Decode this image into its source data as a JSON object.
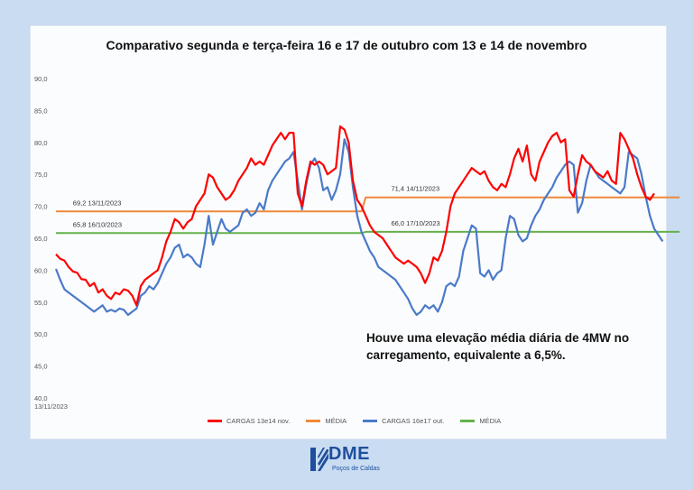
{
  "colors": {
    "red": "#ff0000",
    "blue": "#4a7ac9",
    "orange": "#f0883a",
    "green": "#64b14a"
  },
  "chart_data": {
    "type": "line",
    "title": "Comparativo segunda e terça-feira 16 e 17 de outubro com 13 e 14 de novembro",
    "ylim": [
      40,
      90
    ],
    "yticks": [
      "90,0",
      "85,0",
      "80,0",
      "75,0",
      "70,0",
      "65,0",
      "60,0",
      "55,0",
      "50,0",
      "45,0",
      "40,0"
    ],
    "xtick_first": "13/11/2023",
    "grid": false,
    "legend_position": "bottom",
    "series": [
      {
        "name": "CARGAS 13e14 nov.",
        "color": "#ff0000",
        "values": [
          62.5,
          61.8,
          61.5,
          60.5,
          59.8,
          59.6,
          58.6,
          58.5,
          57.5,
          58.0,
          56.5,
          57.0,
          56.0,
          55.5,
          56.5,
          56.2,
          57.0,
          56.8,
          56.0,
          54.5,
          57.5,
          58.5,
          59.0,
          59.5,
          60.0,
          62.0,
          64.5,
          66.0,
          68.0,
          67.5,
          66.5,
          67.5,
          68.0,
          70.0,
          71.0,
          72.0,
          75.0,
          74.5,
          73.0,
          72.0,
          71.0,
          71.5,
          72.5,
          74.0,
          75.0,
          76.0,
          77.5,
          76.5,
          77.0,
          76.5,
          78.0,
          79.5,
          80.5,
          81.5,
          80.5,
          81.5,
          81.5,
          72.0,
          70.0,
          74.0,
          77.0,
          76.5,
          77.0,
          76.5,
          75.0,
          75.5,
          76.0,
          82.5,
          82.0,
          80.0,
          74.0,
          71.0,
          70.0,
          68.5,
          67.0,
          66.0,
          65.5,
          65.0,
          64.0,
          63.0,
          62.0,
          61.5,
          61.0,
          61.5,
          61.0,
          60.5,
          59.5,
          58.0,
          59.5,
          62.0,
          61.5,
          63.0,
          66.0,
          70.0,
          72.0,
          73.0,
          74.0,
          75.0,
          76.0,
          75.5,
          75.0,
          75.5,
          74.0,
          73.0,
          72.5,
          73.5,
          73.0,
          75.0,
          77.5,
          79.0,
          77.0,
          79.5,
          75.0,
          74.0,
          77.0,
          78.5,
          80.0,
          81.0,
          81.5,
          80.0,
          80.5,
          72.5,
          71.5,
          75.0,
          78.0,
          77.0,
          76.5,
          75.5,
          75.0,
          74.5,
          75.5,
          74.0,
          73.5,
          81.5,
          80.5,
          79.0,
          77.5,
          75.0,
          73.0,
          71.5,
          71.0,
          72.0
        ]
      },
      {
        "name": "MÉDIA",
        "color": "#f0883a",
        "values": [
          69.2,
          69.2,
          69.2,
          69.2,
          69.2,
          69.2,
          69.2,
          69.2,
          69.2,
          69.2,
          69.2,
          69.2,
          69.2,
          69.2,
          69.2,
          69.2,
          69.2,
          69.2,
          69.2,
          69.2,
          69.2,
          69.2,
          69.2,
          69.2,
          69.2,
          69.2,
          69.2,
          69.2,
          69.2,
          69.2,
          69.2,
          69.2,
          69.2,
          69.2,
          69.2,
          69.2,
          69.2,
          69.2,
          69.2,
          69.2,
          69.2,
          69.2,
          69.2,
          69.2,
          69.2,
          69.2,
          69.2,
          69.2,
          69.2,
          69.2,
          69.2,
          69.2,
          69.2,
          69.2,
          69.2,
          69.2,
          69.2,
          69.2,
          69.2,
          69.2,
          69.2,
          69.2,
          69.2,
          69.2,
          69.2,
          69.2,
          69.2,
          69.2,
          69.2,
          69.2,
          69.2,
          69.2,
          69.2,
          71.4,
          71.4,
          71.4,
          71.4,
          71.4,
          71.4,
          71.4,
          71.4,
          71.4,
          71.4,
          71.4,
          71.4,
          71.4,
          71.4,
          71.4,
          71.4,
          71.4,
          71.4,
          71.4,
          71.4,
          71.4,
          71.4,
          71.4,
          71.4,
          71.4,
          71.4,
          71.4,
          71.4,
          71.4,
          71.4,
          71.4,
          71.4,
          71.4,
          71.4,
          71.4,
          71.4,
          71.4,
          71.4,
          71.4,
          71.4,
          71.4,
          71.4,
          71.4,
          71.4,
          71.4,
          71.4,
          71.4,
          71.4,
          71.4,
          71.4,
          71.4,
          71.4,
          71.4,
          71.4,
          71.4,
          71.4,
          71.4,
          71.4,
          71.4,
          71.4,
          71.4,
          71.4,
          71.4,
          71.4,
          71.4,
          71.4,
          71.4,
          71.4,
          71.4,
          71.4,
          71.4,
          71.4,
          71.4,
          71.4,
          71.4
        ]
      },
      {
        "name": "CARGAS 16e17 out.",
        "color": "#4a7ac9",
        "values": [
          60.2,
          58.5,
          57.0,
          56.5,
          56.0,
          55.5,
          55.0,
          54.5,
          54.0,
          53.5,
          54.0,
          54.5,
          53.5,
          53.8,
          53.5,
          54.0,
          53.8,
          53.0,
          53.5,
          54.0,
          56.0,
          56.5,
          57.5,
          57.0,
          58.0,
          59.5,
          61.0,
          62.0,
          63.5,
          64.0,
          62.0,
          62.5,
          62.0,
          61.0,
          60.5,
          64.0,
          68.5,
          64.0,
          66.0,
          68.0,
          66.5,
          66.0,
          66.5,
          67.0,
          69.0,
          69.5,
          68.5,
          69.0,
          70.5,
          69.5,
          72.5,
          74.0,
          75.0,
          76.0,
          77.0,
          77.5,
          78.5,
          74.0,
          69.5,
          73.5,
          76.5,
          77.5,
          76.0,
          72.5,
          73.0,
          71.0,
          72.5,
          75.0,
          80.5,
          78.5,
          73.0,
          68.5,
          66.0,
          64.5,
          63.0,
          62.0,
          60.5,
          60.0,
          59.5,
          59.0,
          58.5,
          57.5,
          56.5,
          55.5,
          54.0,
          53.0,
          53.5,
          54.5,
          54.0,
          54.5,
          53.5,
          55.0,
          57.5,
          58.0,
          57.5,
          59.0,
          63.0,
          65.0,
          67.0,
          66.5,
          59.5,
          59.0,
          60.0,
          58.5,
          59.5,
          60.0,
          65.0,
          68.5,
          68.0,
          65.5,
          64.5,
          65.0,
          67.0,
          68.5,
          69.5,
          71.0,
          72.0,
          73.0,
          74.5,
          75.5,
          76.5,
          77.0,
          76.5,
          69.0,
          70.5,
          74.0,
          76.5,
          75.5,
          74.5,
          74.0,
          73.5,
          73.0,
          72.5,
          72.0,
          73.0,
          78.5,
          78.0,
          77.5,
          75.0,
          71.5,
          68.5,
          66.5,
          65.5,
          64.5
        ]
      },
      {
        "name": "MÉDIA",
        "color": "#64b14a",
        "values": [
          65.8,
          65.8,
          65.8,
          65.8,
          65.8,
          65.8,
          65.8,
          65.8,
          65.8,
          65.8,
          65.8,
          65.8,
          65.8,
          65.8,
          65.8,
          65.8,
          65.8,
          65.8,
          65.8,
          65.8,
          65.8,
          65.8,
          65.8,
          65.8,
          65.8,
          65.8,
          65.8,
          65.8,
          65.8,
          65.8,
          65.8,
          65.8,
          65.8,
          65.8,
          65.8,
          65.8,
          65.8,
          65.8,
          65.8,
          65.8,
          65.8,
          65.8,
          65.8,
          65.8,
          65.8,
          65.8,
          65.8,
          65.8,
          65.8,
          65.8,
          65.8,
          65.8,
          65.8,
          65.8,
          65.8,
          65.8,
          65.8,
          65.8,
          65.8,
          65.8,
          65.8,
          65.8,
          65.8,
          65.8,
          65.8,
          65.8,
          65.8,
          65.8,
          65.8,
          65.8,
          65.8,
          65.8,
          65.8,
          66.0,
          66.0,
          66.0,
          66.0,
          66.0,
          66.0,
          66.0,
          66.0,
          66.0,
          66.0,
          66.0,
          66.0,
          66.0,
          66.0,
          66.0,
          66.0,
          66.0,
          66.0,
          66.0,
          66.0,
          66.0,
          66.0,
          66.0,
          66.0,
          66.0,
          66.0,
          66.0,
          66.0,
          66.0,
          66.0,
          66.0,
          66.0,
          66.0,
          66.0,
          66.0,
          66.0,
          66.0,
          66.0,
          66.0,
          66.0,
          66.0,
          66.0,
          66.0,
          66.0,
          66.0,
          66.0,
          66.0,
          66.0,
          66.0,
          66.0,
          66.0,
          66.0,
          66.0,
          66.0,
          66.0,
          66.0,
          66.0,
          66.0,
          66.0,
          66.0,
          66.0,
          66.0,
          66.0,
          66.0,
          66.0,
          66.0,
          66.0,
          66.0,
          66.0,
          66.0,
          66.0,
          66.0,
          66.0,
          66.0,
          66.0
        ]
      }
    ],
    "annotations": [
      {
        "text": "69,2 13/11/2023",
        "x": 4,
        "y": 69.2
      },
      {
        "text": "65,8 16/10/2023",
        "x": 4,
        "y": 65.8
      },
      {
        "text": "71,4 14/11/2023",
        "x": 79,
        "y": 71.4
      },
      {
        "text": "66,0 17/10/2023",
        "x": 79,
        "y": 66.0
      }
    ]
  },
  "note": "Houve uma elevação média diária de 4MW no carregamento, equivalente a 6,5%.",
  "logo": {
    "name": "DME",
    "subtitle": "Poços de Caldas"
  }
}
